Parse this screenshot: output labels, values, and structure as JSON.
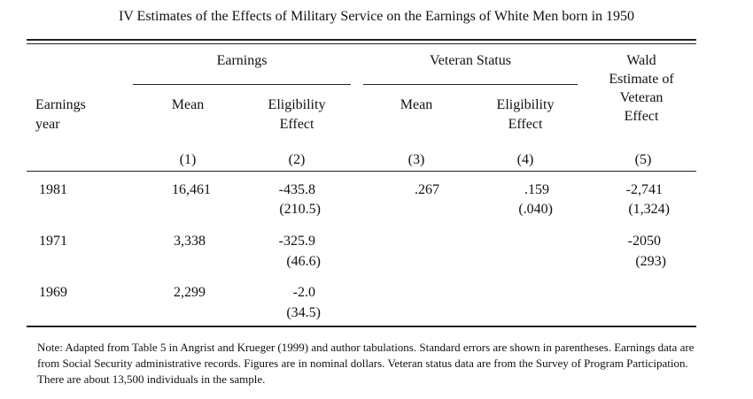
{
  "title": "IV Estimates of the Effects of Military Service on the Earnings of White Men born in 1950",
  "headers": {
    "group_earnings": "Earnings",
    "group_veteran": "Veteran Status",
    "wald": [
      "Wald",
      "Estimate of",
      "Veteran",
      "Effect"
    ],
    "earnings_year": [
      "Earnings",
      "year"
    ],
    "mean_1": "Mean",
    "elig_1": [
      "Eligibility",
      "Effect"
    ],
    "mean_3": "Mean",
    "elig_4": [
      "Eligibility",
      "Effect"
    ],
    "col_nums": [
      "(1)",
      "(2)",
      "(3)",
      "(4)",
      "(5)"
    ]
  },
  "rows": [
    {
      "year": "1981",
      "c1": "16,461",
      "c2": "-435.8",
      "c2se": "(210.5)",
      "c3": ".267",
      "c4": ".159",
      "c4se": "(.040)",
      "c5": "-2,741",
      "c5se": "(1,324)"
    },
    {
      "year": "1971",
      "c1": "3,338",
      "c2": "-325.9",
      "c2se": "(46.6)",
      "c3": "",
      "c4": "",
      "c4se": "",
      "c5": "-2050",
      "c5se": "(293)"
    },
    {
      "year": "1969",
      "c1": "2,299",
      "c2": "-2.0",
      "c2se": "(34.5)",
      "c3": "",
      "c4": "",
      "c4se": "",
      "c5": "",
      "c5se": ""
    }
  ],
  "note": "Note: Adapted from Table 5 in Angrist and Krueger (1999) and author tabulations. Standard errors are shown in parentheses.  Earnings data are from Social Security administrative records.   Figures are in nominal dollars. Veteran status data are from the Survey of Program Participation.  There are about 13,500 individuals in the sample."
}
